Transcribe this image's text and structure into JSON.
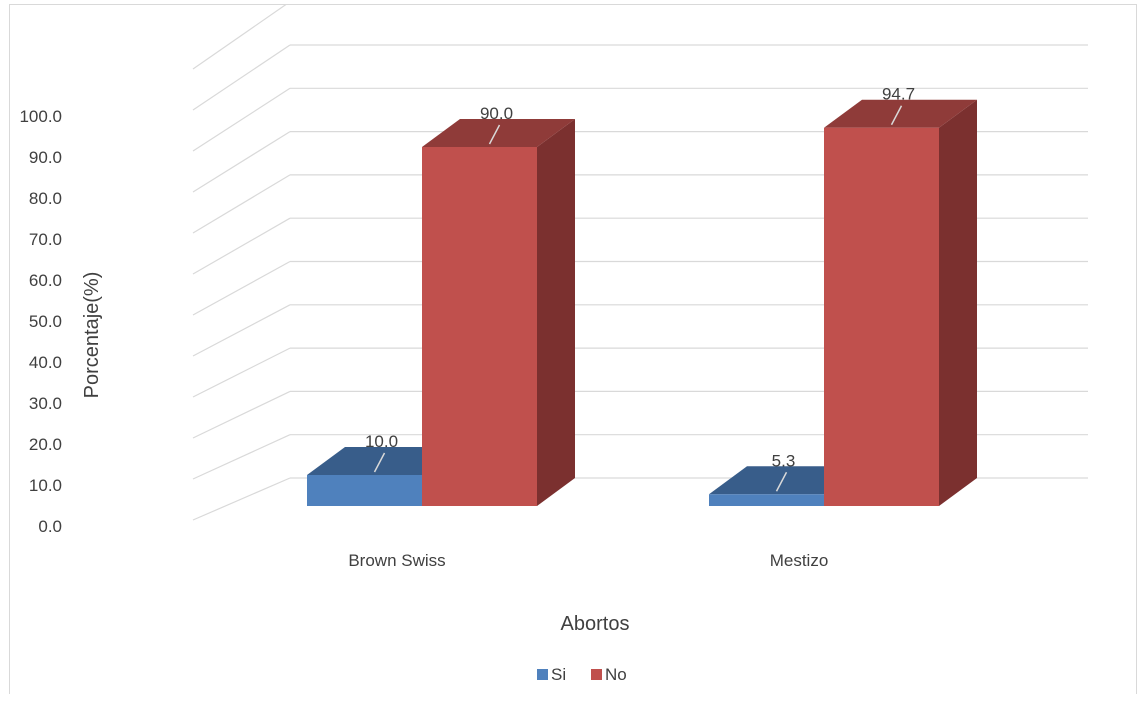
{
  "chart_data": {
    "type": "bar",
    "style": "3d-clustered-column",
    "categories": [
      "Brown Swiss",
      "Mestizo"
    ],
    "series": [
      {
        "name": "Si",
        "values": [
          10.0,
          5.3
        ],
        "color": "#4f81bd",
        "top_color": "#385d8a",
        "side_color": "#2c4a6e"
      },
      {
        "name": "No",
        "values": [
          90.0,
          94.7
        ],
        "color": "#c0504d",
        "top_color": "#8f3b39",
        "side_color": "#7b302f"
      }
    ],
    "data_labels": [
      [
        "10.0",
        "5.3"
      ],
      [
        "90.0",
        "94.7"
      ]
    ],
    "xlabel": "Abortos",
    "ylabel": "Porcentaje(%)",
    "ylim": [
      0,
      100
    ],
    "yticks": [
      "0.0",
      "10.0",
      "20.0",
      "30.0",
      "40.0",
      "50.0",
      "60.0",
      "70.0",
      "80.0",
      "90.0",
      "100.0"
    ],
    "grid": true,
    "legend_position": "bottom"
  }
}
